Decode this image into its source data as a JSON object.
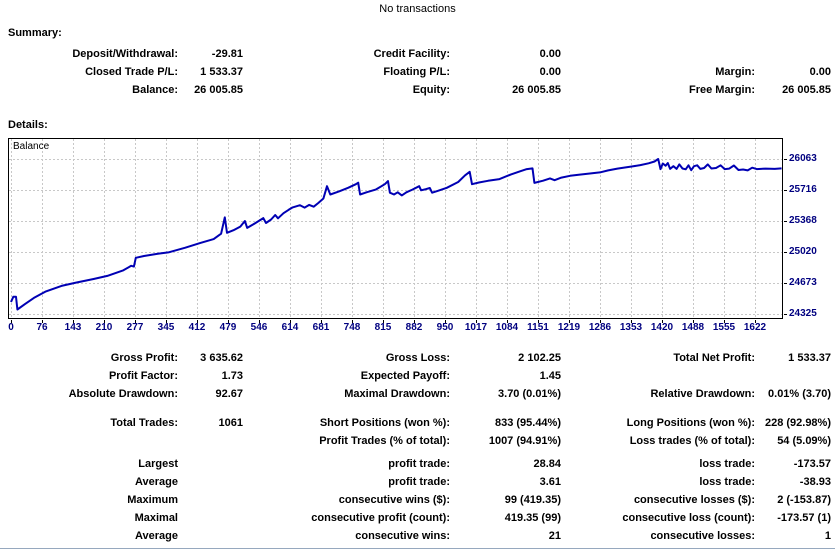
{
  "title": "No transactions",
  "summary": {
    "heading": "Summary:",
    "rows": [
      [
        "Deposit/Withdrawal:",
        "-29.81",
        "Credit Facility:",
        "0.00",
        "",
        ""
      ],
      [
        "Closed Trade P/L:",
        "1 533.37",
        "Floating P/L:",
        "0.00",
        "Margin:",
        "0.00"
      ],
      [
        "Balance:",
        "26 005.85",
        "Equity:",
        "26 005.85",
        "Free Margin:",
        "26 005.85"
      ]
    ]
  },
  "details": {
    "heading": "Details:",
    "stats_top": [
      [
        "Gross Profit:",
        "3 635.62",
        "Gross Loss:",
        "2 102.25",
        "Total Net Profit:",
        "1 533.37"
      ],
      [
        "Profit Factor:",
        "1.73",
        "Expected Payoff:",
        "1.45",
        "",
        ""
      ],
      [
        "Absolute Drawdown:",
        "92.67",
        "Maximal Drawdown:",
        "3.70 (0.01%)",
        "Relative Drawdown:",
        "0.01% (3.70)"
      ]
    ],
    "stats_mid": [
      [
        "Total Trades:",
        "1061",
        "Short Positions (won %):",
        "833 (95.44%)",
        "Long Positions (won %):",
        "228 (92.98%)"
      ],
      [
        "",
        "",
        "Profit Trades (% of total):",
        "1007 (94.91%)",
        "Loss trades (% of total):",
        "54 (5.09%)"
      ]
    ],
    "stats_bottom": [
      [
        "Largest",
        "",
        "profit trade:",
        "28.84",
        "loss trade:",
        "-173.57"
      ],
      [
        "Average",
        "",
        "profit trade:",
        "3.61",
        "loss trade:",
        "-38.93"
      ],
      [
        "Maximum",
        "",
        "consecutive wins ($):",
        "99 (419.35)",
        "consecutive losses ($):",
        "2 (-153.87)"
      ],
      [
        "Maximal",
        "",
        "consecutive profit (count):",
        "419.35 (99)",
        "consecutive loss (count):",
        "-173.57 (1)"
      ],
      [
        "Average",
        "",
        "consecutive wins:",
        "21",
        "consecutive losses:",
        "1"
      ]
    ]
  },
  "chart_data": {
    "type": "line",
    "title": "Balance",
    "xlabel": "",
    "ylabel": "",
    "x_ticks": [
      0,
      76,
      143,
      210,
      277,
      345,
      412,
      479,
      546,
      614,
      681,
      748,
      815,
      882,
      950,
      1017,
      1084,
      1151,
      1219,
      1286,
      1353,
      1420,
      1488,
      1555,
      1622
    ],
    "y_ticks": [
      26063,
      25716,
      25368,
      25020,
      24673,
      24325
    ],
    "xlim": [
      0,
      1680
    ],
    "ylim": [
      24258,
      26290
    ],
    "grid": true,
    "legend_position": "top-left",
    "line_color": "#0000B4",
    "grid_color": "#C8C8C8",
    "axis_text_color": "#000080",
    "series": [
      {
        "name": "Balance",
        "points": [
          [
            0,
            24460
          ],
          [
            5,
            24518
          ],
          [
            11,
            24518
          ],
          [
            14,
            24375
          ],
          [
            30,
            24435
          ],
          [
            50,
            24505
          ],
          [
            76,
            24578
          ],
          [
            110,
            24640
          ],
          [
            143,
            24678
          ],
          [
            180,
            24718
          ],
          [
            210,
            24752
          ],
          [
            245,
            24815
          ],
          [
            262,
            24865
          ],
          [
            268,
            24856
          ],
          [
            272,
            24955
          ],
          [
            290,
            24975
          ],
          [
            320,
            25000
          ],
          [
            345,
            25018
          ],
          [
            380,
            25068
          ],
          [
            412,
            25120
          ],
          [
            442,
            25165
          ],
          [
            458,
            25225
          ],
          [
            466,
            25408
          ],
          [
            471,
            25235
          ],
          [
            485,
            25265
          ],
          [
            500,
            25305
          ],
          [
            510,
            25368
          ],
          [
            515,
            25290
          ],
          [
            528,
            25330
          ],
          [
            540,
            25368
          ],
          [
            550,
            25400
          ],
          [
            556,
            25345
          ],
          [
            567,
            25385
          ],
          [
            576,
            25435
          ],
          [
            582,
            25398
          ],
          [
            594,
            25455
          ],
          [
            605,
            25492
          ],
          [
            614,
            25520
          ],
          [
            630,
            25545
          ],
          [
            640,
            25518
          ],
          [
            650,
            25548
          ],
          [
            660,
            25528
          ],
          [
            670,
            25570
          ],
          [
            681,
            25620
          ],
          [
            689,
            25758
          ],
          [
            696,
            25665
          ],
          [
            715,
            25700
          ],
          [
            735,
            25740
          ],
          [
            752,
            25780
          ],
          [
            757,
            25797
          ],
          [
            761,
            25665
          ],
          [
            775,
            25690
          ],
          [
            795,
            25720
          ],
          [
            815,
            25780
          ],
          [
            822,
            25815
          ],
          [
            826,
            25685
          ],
          [
            835,
            25665
          ],
          [
            843,
            25690
          ],
          [
            852,
            25655
          ],
          [
            862,
            25690
          ],
          [
            875,
            25720
          ],
          [
            890,
            25758
          ],
          [
            894,
            25712
          ],
          [
            905,
            25725
          ],
          [
            913,
            25738
          ],
          [
            918,
            25685
          ],
          [
            930,
            25705
          ],
          [
            950,
            25740
          ],
          [
            975,
            25805
          ],
          [
            990,
            25880
          ],
          [
            1000,
            25920
          ],
          [
            1005,
            25780
          ],
          [
            1020,
            25800
          ],
          [
            1040,
            25818
          ],
          [
            1065,
            25838
          ],
          [
            1090,
            25890
          ],
          [
            1110,
            25925
          ],
          [
            1123,
            25948
          ],
          [
            1137,
            25958
          ],
          [
            1141,
            25795
          ],
          [
            1160,
            25820
          ],
          [
            1175,
            25845
          ],
          [
            1185,
            25825
          ],
          [
            1200,
            25855
          ],
          [
            1219,
            25875
          ],
          [
            1240,
            25888
          ],
          [
            1262,
            25900
          ],
          [
            1286,
            25915
          ],
          [
            1302,
            25935
          ],
          [
            1322,
            25955
          ],
          [
            1342,
            25970
          ],
          [
            1355,
            25980
          ],
          [
            1372,
            25995
          ],
          [
            1390,
            26015
          ],
          [
            1403,
            26035
          ],
          [
            1411,
            26063
          ],
          [
            1416,
            25950
          ],
          [
            1421,
            26012
          ],
          [
            1427,
            25988
          ],
          [
            1432,
            26018
          ],
          [
            1437,
            25952
          ],
          [
            1444,
            25982
          ],
          [
            1451,
            25952
          ],
          [
            1457,
            26002
          ],
          [
            1464,
            25957
          ],
          [
            1471,
            25947
          ],
          [
            1477,
            25992
          ],
          [
            1483,
            25937
          ],
          [
            1489,
            25982
          ],
          [
            1496,
            25992
          ],
          [
            1503,
            25952
          ],
          [
            1511,
            25962
          ],
          [
            1519,
            26002
          ],
          [
            1527,
            25957
          ],
          [
            1537,
            25962
          ],
          [
            1547,
            25992
          ],
          [
            1556,
            25950
          ],
          [
            1566,
            25955
          ],
          [
            1576,
            25990
          ],
          [
            1586,
            25940
          ],
          [
            1596,
            25945
          ],
          [
            1606,
            25935
          ],
          [
            1616,
            25965
          ],
          [
            1626,
            25950
          ],
          [
            1645,
            25955
          ],
          [
            1665,
            25952
          ],
          [
            1680,
            25958
          ]
        ]
      }
    ]
  },
  "colors": {
    "accent": "#0000B4",
    "axis_text": "#000080",
    "grid": "#C8C8C8",
    "divider": "#96A8BE"
  }
}
